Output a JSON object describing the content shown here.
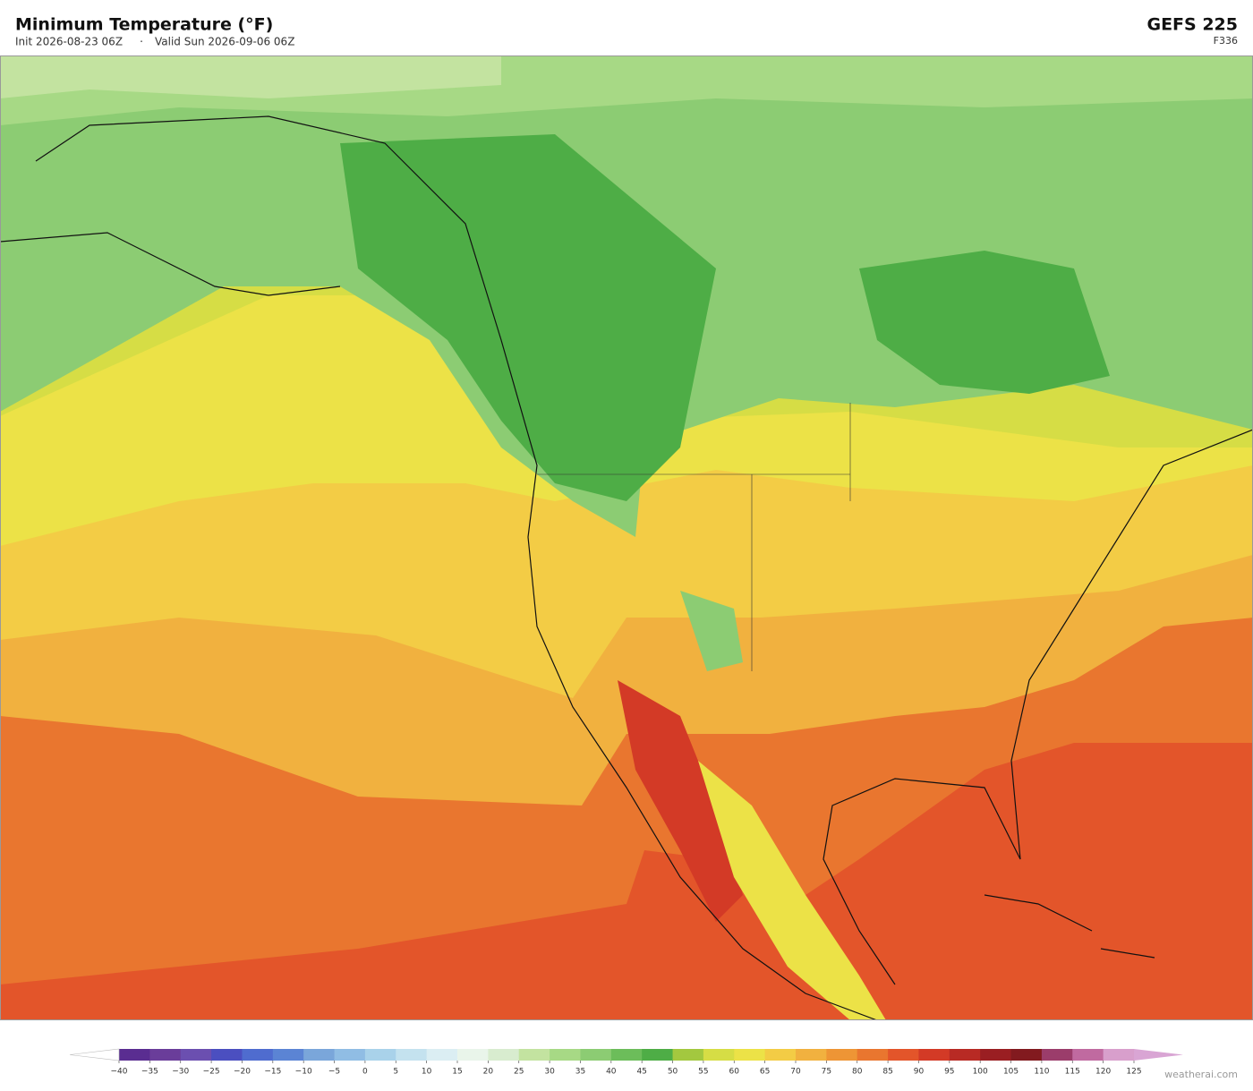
{
  "header": {
    "title": "Minimum Temperature  (°F)",
    "init": "Init 2026-08-23 06Z",
    "separator": "·",
    "valid": "Valid Sun 2026-09-06 06Z",
    "model": "GEFS  225",
    "frame": "F336"
  },
  "colorbar": {
    "ticks": [
      {
        "value": -40,
        "label": "−40"
      },
      {
        "value": -35,
        "label": "−35"
      },
      {
        "value": -30,
        "label": "−30"
      },
      {
        "value": -25,
        "label": "−25"
      },
      {
        "value": -20,
        "label": "−20"
      },
      {
        "value": -15,
        "label": "−15"
      },
      {
        "value": -10,
        "label": "−10"
      },
      {
        "value": -5,
        "label": "−5"
      },
      0,
      5,
      10,
      15,
      20,
      25,
      30,
      35,
      40,
      45,
      50,
      55,
      60,
      65,
      70,
      75,
      80,
      85,
      90,
      95,
      100,
      105,
      110,
      115,
      120,
      125
    ],
    "colors": [
      "#5a2d91",
      "#6a3d9a",
      "#6b4fb0",
      "#4b4fc0",
      "#4f6ccf",
      "#5b84d4",
      "#7aa6da",
      "#90bde4",
      "#a9d2ea",
      "#c4e2ef",
      "#dbeef3",
      "#e9f5ea",
      "#d8eccf",
      "#c3e3a0",
      "#a7d985",
      "#8ccc73",
      "#6cbd5a",
      "#4ead46",
      "#a3c83f",
      "#d6dd45",
      "#ece247",
      "#f3cc45",
      "#f1b13f",
      "#ee9535",
      "#e9762f",
      "#e3552a",
      "#d33a26",
      "#b82a24",
      "#9a1e22",
      "#821a1f",
      "#9b3d6b",
      "#c06aa0",
      "#d89fcc"
    ],
    "under_color": "#ffffff",
    "over_color": "#d9a5d4"
  },
  "watermark": "weatherai.com"
}
